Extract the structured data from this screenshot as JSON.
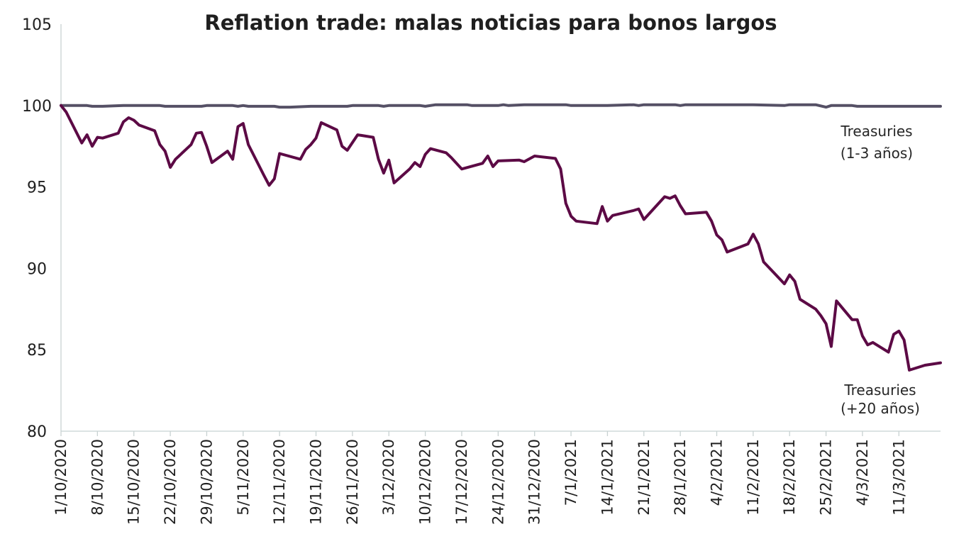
{
  "chart_data": {
    "type": "line",
    "title": "Reflation trade: malas noticias para bonos largos",
    "xlabel": "",
    "ylabel": "",
    "ylim": [
      80,
      105
    ],
    "y_ticks": [
      "80",
      "85",
      "90",
      "95",
      "100",
      "105"
    ],
    "x_range": [
      "2020-10-01",
      "2021-03-19"
    ],
    "x_ticks": [
      {
        "date": "2020-10-01",
        "label": "1/10/2020"
      },
      {
        "date": "2020-10-08",
        "label": "8/10/2020"
      },
      {
        "date": "2020-10-15",
        "label": "15/10/2020"
      },
      {
        "date": "2020-10-22",
        "label": "22/10/2020"
      },
      {
        "date": "2020-10-29",
        "label": "29/10/2020"
      },
      {
        "date": "2020-11-05",
        "label": "5/11/2020"
      },
      {
        "date": "2020-11-12",
        "label": "12/11/2020"
      },
      {
        "date": "2020-11-19",
        "label": "19/11/2020"
      },
      {
        "date": "2020-11-26",
        "label": "26/11/2020"
      },
      {
        "date": "2020-12-03",
        "label": "3/12/2020"
      },
      {
        "date": "2020-12-10",
        "label": "10/12/2020"
      },
      {
        "date": "2020-12-17",
        "label": "17/12/2020"
      },
      {
        "date": "2020-12-24",
        "label": "24/12/2020"
      },
      {
        "date": "2020-12-31",
        "label": "31/12/2020"
      },
      {
        "date": "2021-01-07",
        "label": "7/1/2021"
      },
      {
        "date": "2021-01-14",
        "label": "14/1/2021"
      },
      {
        "date": "2021-01-21",
        "label": "21/1/2021"
      },
      {
        "date": "2021-01-28",
        "label": "28/1/2021"
      },
      {
        "date": "2021-02-04",
        "label": "4/2/2021"
      },
      {
        "date": "2021-02-11",
        "label": "11/2/2021"
      },
      {
        "date": "2021-02-18",
        "label": "18/2/2021"
      },
      {
        "date": "2021-02-25",
        "label": "25/2/2021"
      },
      {
        "date": "2021-03-04",
        "label": "4/3/2021"
      },
      {
        "date": "2021-03-11",
        "label": "11/3/2021"
      }
    ],
    "grid": false,
    "legend": "none",
    "series": [
      {
        "name_lines": [
          "Treasuries",
          "(1-3 años)"
        ],
        "color": "#555065",
        "points": [
          [
            "2020-10-01",
            100.0
          ],
          [
            "2020-10-06",
            100.0
          ],
          [
            "2020-10-07",
            99.95
          ],
          [
            "2020-10-09",
            99.95
          ],
          [
            "2020-10-13",
            100.0
          ],
          [
            "2020-10-20",
            100.0
          ],
          [
            "2020-10-21",
            99.95
          ],
          [
            "2020-10-28",
            99.95
          ],
          [
            "2020-10-29",
            100.0
          ],
          [
            "2020-11-03",
            100.0
          ],
          [
            "2020-11-04",
            99.95
          ],
          [
            "2020-11-05",
            100.0
          ],
          [
            "2020-11-06",
            99.95
          ],
          [
            "2020-11-11",
            99.95
          ],
          [
            "2020-11-12",
            99.9
          ],
          [
            "2020-11-14",
            99.9
          ],
          [
            "2020-11-18",
            99.95
          ],
          [
            "2020-11-25",
            99.95
          ],
          [
            "2020-11-26",
            100.0
          ],
          [
            "2020-12-01",
            100.0
          ],
          [
            "2020-12-02",
            99.95
          ],
          [
            "2020-12-03",
            100.0
          ],
          [
            "2020-12-09",
            100.0
          ],
          [
            "2020-12-10",
            99.95
          ],
          [
            "2020-12-12",
            100.05
          ],
          [
            "2020-12-18",
            100.05
          ],
          [
            "2020-12-19",
            100.0
          ],
          [
            "2020-12-24",
            100.0
          ],
          [
            "2020-12-25",
            100.05
          ],
          [
            "2020-12-26",
            100.0
          ],
          [
            "2020-12-29",
            100.05
          ],
          [
            "2021-01-06",
            100.05
          ],
          [
            "2021-01-07",
            100.0
          ],
          [
            "2021-01-14",
            100.0
          ],
          [
            "2021-01-19",
            100.05
          ],
          [
            "2021-01-20",
            100.0
          ],
          [
            "2021-01-21",
            100.05
          ],
          [
            "2021-01-27",
            100.05
          ],
          [
            "2021-01-28",
            100.0
          ],
          [
            "2021-01-29",
            100.05
          ],
          [
            "2021-02-11",
            100.05
          ],
          [
            "2021-02-17",
            100.0
          ],
          [
            "2021-02-18",
            100.05
          ],
          [
            "2021-02-23",
            100.05
          ],
          [
            "2021-02-25",
            99.9
          ],
          [
            "2021-02-26",
            100.0
          ],
          [
            "2021-03-02",
            100.0
          ],
          [
            "2021-03-03",
            99.95
          ],
          [
            "2021-03-19",
            99.95
          ]
        ]
      },
      {
        "name_lines": [
          "Treasuries",
          "(+20 años)"
        ],
        "color": "#5c0a45",
        "points": [
          [
            "2020-10-01",
            100.0
          ],
          [
            "2020-10-02",
            99.6
          ],
          [
            "2020-10-05",
            97.7
          ],
          [
            "2020-10-06",
            98.2
          ],
          [
            "2020-10-07",
            97.5
          ],
          [
            "2020-10-08",
            98.05
          ],
          [
            "2020-10-09",
            98.0
          ],
          [
            "2020-10-12",
            98.3
          ],
          [
            "2020-10-13",
            99.0
          ],
          [
            "2020-10-14",
            99.25
          ],
          [
            "2020-10-15",
            99.1
          ],
          [
            "2020-10-16",
            98.8
          ],
          [
            "2020-10-19",
            98.45
          ],
          [
            "2020-10-20",
            97.6
          ],
          [
            "2020-10-21",
            97.2
          ],
          [
            "2020-10-22",
            96.2
          ],
          [
            "2020-10-23",
            96.7
          ],
          [
            "2020-10-26",
            97.6
          ],
          [
            "2020-10-27",
            98.3
          ],
          [
            "2020-10-28",
            98.35
          ],
          [
            "2020-10-29",
            97.5
          ],
          [
            "2020-10-30",
            96.5
          ],
          [
            "2020-11-02",
            97.2
          ],
          [
            "2020-11-03",
            96.7
          ],
          [
            "2020-11-04",
            98.7
          ],
          [
            "2020-11-05",
            98.9
          ],
          [
            "2020-11-06",
            97.6
          ],
          [
            "2020-11-09",
            95.7
          ],
          [
            "2020-11-10",
            95.1
          ],
          [
            "2020-11-11",
            95.5
          ],
          [
            "2020-11-12",
            97.05
          ],
          [
            "2020-11-16",
            96.7
          ],
          [
            "2020-11-17",
            97.3
          ],
          [
            "2020-11-18",
            97.6
          ],
          [
            "2020-11-19",
            98.0
          ],
          [
            "2020-11-20",
            98.95
          ],
          [
            "2020-11-23",
            98.5
          ],
          [
            "2020-11-24",
            97.5
          ],
          [
            "2020-11-25",
            97.25
          ],
          [
            "2020-11-27",
            98.2
          ],
          [
            "2020-11-30",
            98.05
          ],
          [
            "2020-12-01",
            96.7
          ],
          [
            "2020-12-02",
            95.85
          ],
          [
            "2020-12-03",
            96.65
          ],
          [
            "2020-12-04",
            95.25
          ],
          [
            "2020-12-07",
            96.1
          ],
          [
            "2020-12-08",
            96.5
          ],
          [
            "2020-12-09",
            96.25
          ],
          [
            "2020-12-10",
            97.0
          ],
          [
            "2020-12-11",
            97.35
          ],
          [
            "2020-12-14",
            97.1
          ],
          [
            "2020-12-15",
            96.8
          ],
          [
            "2020-12-17",
            96.1
          ],
          [
            "2020-12-21",
            96.45
          ],
          [
            "2020-12-22",
            96.9
          ],
          [
            "2020-12-23",
            96.25
          ],
          [
            "2020-12-24",
            96.6
          ],
          [
            "2020-12-28",
            96.65
          ],
          [
            "2020-12-29",
            96.55
          ],
          [
            "2020-12-31",
            96.9
          ],
          [
            "2021-01-04",
            96.75
          ],
          [
            "2021-01-05",
            96.1
          ],
          [
            "2021-01-06",
            94.0
          ],
          [
            "2021-01-07",
            93.2
          ],
          [
            "2021-01-08",
            92.9
          ],
          [
            "2021-01-12",
            92.75
          ],
          [
            "2021-01-13",
            93.8
          ],
          [
            "2021-01-14",
            92.9
          ],
          [
            "2021-01-15",
            93.25
          ],
          [
            "2021-01-19",
            93.55
          ],
          [
            "2021-01-20",
            93.65
          ],
          [
            "2021-01-21",
            93.0
          ],
          [
            "2021-01-25",
            94.4
          ],
          [
            "2021-01-26",
            94.3
          ],
          [
            "2021-01-27",
            94.45
          ],
          [
            "2021-01-28",
            93.85
          ],
          [
            "2021-01-29",
            93.35
          ],
          [
            "2021-02-02",
            93.45
          ],
          [
            "2021-02-03",
            92.9
          ],
          [
            "2021-02-04",
            92.05
          ],
          [
            "2021-02-05",
            91.75
          ],
          [
            "2021-02-06",
            91.0
          ],
          [
            "2021-02-10",
            91.5
          ],
          [
            "2021-02-11",
            92.1
          ],
          [
            "2021-02-12",
            91.5
          ],
          [
            "2021-02-13",
            90.4
          ],
          [
            "2021-02-17",
            89.05
          ],
          [
            "2021-02-18",
            89.6
          ],
          [
            "2021-02-19",
            89.2
          ],
          [
            "2021-02-20",
            88.1
          ],
          [
            "2021-02-23",
            87.5
          ],
          [
            "2021-02-24",
            87.1
          ],
          [
            "2021-02-25",
            86.6
          ],
          [
            "2021-02-26",
            85.2
          ],
          [
            "2021-02-27",
            88.0
          ],
          [
            "2021-03-02",
            86.85
          ],
          [
            "2021-03-03",
            86.85
          ],
          [
            "2021-03-04",
            85.85
          ],
          [
            "2021-03-05",
            85.3
          ],
          [
            "2021-03-06",
            85.45
          ],
          [
            "2021-03-09",
            84.85
          ],
          [
            "2021-03-10",
            85.95
          ],
          [
            "2021-03-11",
            86.15
          ],
          [
            "2021-03-12",
            85.6
          ],
          [
            "2021-03-13",
            83.75
          ],
          [
            "2021-03-16",
            84.05
          ],
          [
            "2021-03-19",
            84.2
          ]
        ]
      }
    ]
  }
}
